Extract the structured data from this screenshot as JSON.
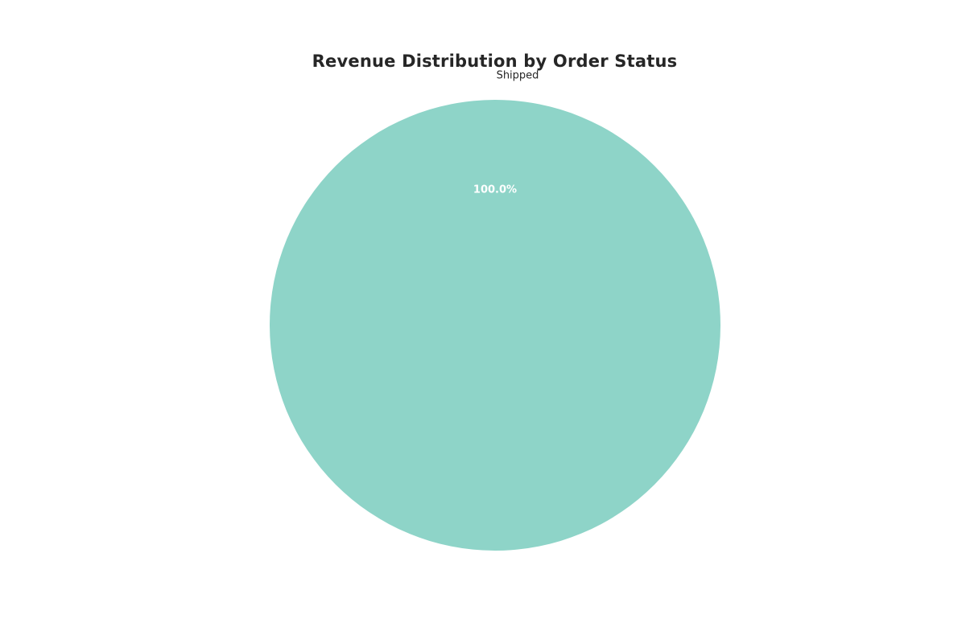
{
  "chart_data": {
    "type": "pie",
    "title": "Revenue Distribution by Order Status",
    "slices": [
      {
        "label": "Shipped",
        "value": 100.0,
        "percent_label": "100.0%",
        "color": "#8ED4C8"
      }
    ],
    "legend": "none"
  }
}
